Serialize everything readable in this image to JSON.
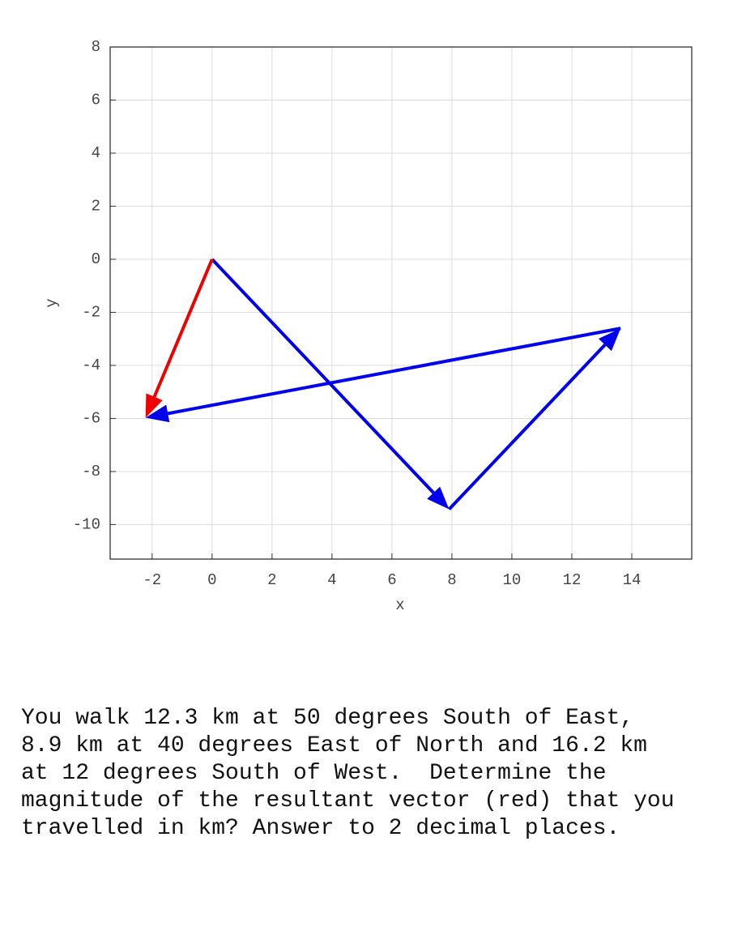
{
  "chart_data": {
    "type": "vector",
    "xlabel": "x",
    "ylabel": "y",
    "xlim": [
      -3.4,
      16
    ],
    "ylim": [
      -11.3,
      8
    ],
    "xticks": [
      -2,
      0,
      2,
      4,
      6,
      8,
      10,
      12,
      14
    ],
    "yticks": [
      -10,
      -8,
      -6,
      -4,
      -2,
      0,
      2,
      4,
      6,
      8
    ],
    "grid": true,
    "vectors": [
      {
        "x": [
          0,
          7.906
        ],
        "y": [
          0,
          -9.422
        ],
        "color": "#0000ee"
      },
      {
        "x": [
          7.906,
          13.627
        ],
        "y": [
          -9.422,
          -2.604
        ],
        "color": "#0000ee"
      },
      {
        "x": [
          13.627,
          -2.219
        ],
        "y": [
          -2.604,
          -5.972
        ],
        "color": "#0000ee"
      },
      {
        "x": [
          0,
          -2.219
        ],
        "y": [
          0,
          -5.972
        ],
        "color": "#ee0000"
      }
    ]
  },
  "question": [
    "You walk 12.3 km at 50 degrees South of East,",
    "8.9 km at 40 degrees East of North and 16.2 km",
    "at 12 degrees South of West.  Determine the",
    "magnitude of the resultant vector (red) that you",
    "travelled in km? Answer to 2 decimal places."
  ]
}
